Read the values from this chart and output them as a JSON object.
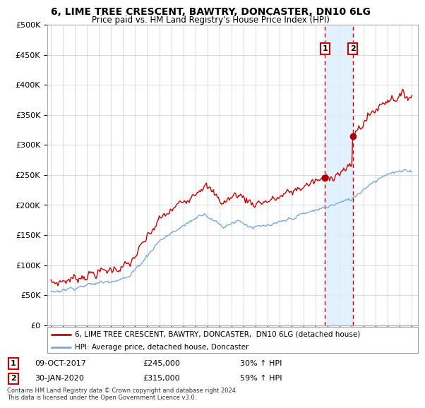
{
  "title": "6, LIME TREE CRESCENT, BAWTRY, DONCASTER, DN10 6LG",
  "subtitle": "Price paid vs. HM Land Registry's House Price Index (HPI)",
  "title_fontsize": 10,
  "subtitle_fontsize": 8.5,
  "ylabel_ticks": [
    "£0",
    "£50K",
    "£100K",
    "£150K",
    "£200K",
    "£250K",
    "£300K",
    "£350K",
    "£400K",
    "£450K",
    "£500K"
  ],
  "ytick_values": [
    0,
    50000,
    100000,
    150000,
    200000,
    250000,
    300000,
    350000,
    400000,
    450000,
    500000
  ],
  "ylim": [
    0,
    500000
  ],
  "xlim_start": 1994.7,
  "xlim_end": 2025.5,
  "sale1_x": 2017.77,
  "sale1_y": 245000,
  "sale1_label": "1",
  "sale2_x": 2020.08,
  "sale2_y": 315000,
  "sale2_label": "2",
  "sale1_date": "09-OCT-2017",
  "sale1_price": "£245,000",
  "sale1_hpi": "30% ↑ HPI",
  "sale2_date": "30-JAN-2020",
  "sale2_price": "£315,000",
  "sale2_hpi": "59% ↑ HPI",
  "legend_line1": "6, LIME TREE CRESCENT, BAWTRY, DONCASTER,  DN10 6LG (detached house)",
  "legend_line2": "HPI: Average price, detached house, Doncaster",
  "footer": "Contains HM Land Registry data © Crown copyright and database right 2024.\nThis data is licensed under the Open Government Licence v3.0.",
  "line_color_red": "#cc0000",
  "line_color_blue": "#7aaadd",
  "shade_color": "#ddeeff",
  "dot_color_red": "#aa0000",
  "vline_color": "#cc0000",
  "box_color": "#cc0000",
  "background_color": "#ffffff",
  "grid_color": "#cccccc"
}
